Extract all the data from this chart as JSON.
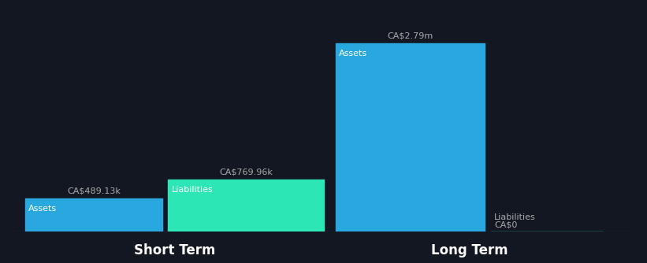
{
  "background_color": "#131722",
  "groups": [
    "Short Term",
    "Long Term"
  ],
  "categories": [
    "Assets",
    "Liabilities"
  ],
  "values": {
    "Short Term": {
      "Assets": 489130,
      "Liabilities": 769960
    },
    "Long Term": {
      "Assets": 2790000,
      "Liabilities": 0
    }
  },
  "colors": {
    "Assets": "#29a8e0",
    "Liabilities": "#2de6b6"
  },
  "value_labels": {
    "Short Term": {
      "Assets": "CA$489.13k",
      "Liabilities": "CA$769.96k"
    },
    "Long Term": {
      "Assets": "CA$2.79m",
      "Liabilities": "CA$0"
    }
  },
  "group_label_fontsize": 12,
  "bar_label_fontsize": 8,
  "value_label_fontsize": 8,
  "text_color": "#ffffff",
  "label_color": "#aaaaaa",
  "baseline_color": "#555555",
  "ylim_max": 3000000
}
